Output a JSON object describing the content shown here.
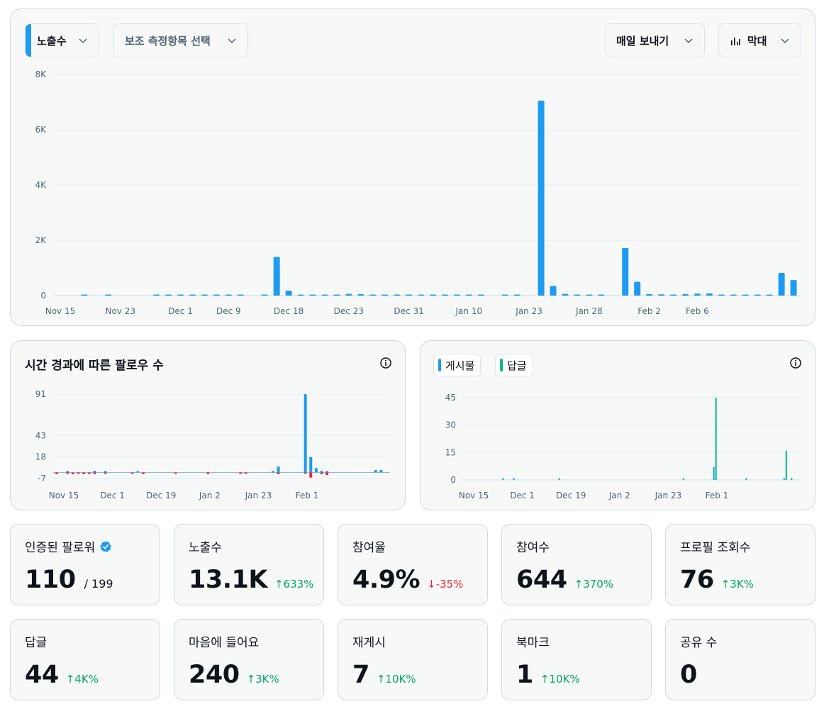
{
  "toolbar": {
    "metric_label": "노출수",
    "secondary_label": "보조 측정항목 선택",
    "export_label": "매일 보내기",
    "chart_type_label": "막대"
  },
  "colors": {
    "blue": "#1d9bf0",
    "green": "#00ba7c",
    "red": "#f4212e",
    "up": "#00a662"
  },
  "main_chart": {
    "chart_data": {
      "type": "bar",
      "y_ticks": [
        "8K",
        "6K",
        "4K",
        "2K",
        "0"
      ],
      "y_tick_values": [
        8000,
        6000,
        4000,
        2000,
        0
      ],
      "ylim": [
        0,
        8000
      ],
      "x_ticks": [
        "Nov 15",
        "Nov 23",
        "Dec 1",
        "Dec 9",
        "Dec 18",
        "Dec 23",
        "Dec 31",
        "Jan 10",
        "Jan 23",
        "Jan 28",
        "Feb 2",
        "Feb 6"
      ],
      "series": [
        {
          "values": [
            0,
            10,
            0,
            8,
            0,
            0,
            0,
            12,
            15,
            10,
            10,
            8,
            10,
            8,
            5,
            0,
            12,
            1400,
            180,
            30,
            20,
            20,
            25,
            60,
            50,
            30,
            25,
            20,
            15,
            18,
            15,
            15,
            15,
            15,
            12,
            0,
            12,
            12,
            0,
            7050,
            350,
            60,
            40,
            35,
            35,
            0,
            1720,
            500,
            50,
            45,
            40,
            50,
            70,
            80,
            40,
            35,
            35,
            35,
            30,
            820,
            560
          ]
        }
      ]
    }
  },
  "followers_chart": {
    "title": "시간 경과에 따른 팔로우 수",
    "chart_data": {
      "type": "bar",
      "y_ticks": [
        "91",
        "43",
        "18",
        "-7"
      ],
      "y_tick_values": [
        91,
        43,
        18,
        -7
      ],
      "ylim": [
        -7,
        91
      ],
      "x_ticks": [
        "Nov 15",
        "Dec 1",
        "Dec 19",
        "Jan 2",
        "Jan 23",
        "Feb 1"
      ],
      "series": [
        {
          "name": "gain",
          "values": [
            0,
            0,
            1,
            0,
            0,
            0,
            0,
            2,
            0,
            1,
            0,
            0,
            0,
            0,
            0,
            1,
            0,
            0,
            0,
            0,
            0,
            0,
            0,
            0,
            0,
            0,
            0,
            0,
            0,
            0,
            0,
            0,
            0,
            0,
            0,
            0,
            0,
            0,
            0,
            0,
            1,
            7,
            0,
            0,
            0,
            0,
            91,
            18,
            5,
            2,
            1,
            0,
            0,
            0,
            0,
            0,
            0,
            0,
            0,
            3,
            3
          ]
        },
        {
          "name": "loss",
          "values": [
            -2,
            0,
            -1,
            -2,
            -1,
            -2,
            -1,
            -2,
            0,
            -1,
            0,
            0,
            0,
            0,
            -1,
            0,
            -2,
            0,
            0,
            0,
            0,
            0,
            -1,
            0,
            0,
            0,
            0,
            0,
            -2,
            0,
            0,
            0,
            0,
            0,
            -1,
            -1,
            0,
            0,
            0,
            0,
            0,
            -2,
            0,
            0,
            0,
            0,
            -1,
            -6,
            0,
            -2,
            -3,
            0,
            0,
            0,
            0,
            0,
            0,
            0,
            0,
            0,
            0
          ]
        }
      ]
    }
  },
  "posts_chart": {
    "legend": [
      {
        "label": "게시물",
        "color": "#1d9bf0"
      },
      {
        "label": "답글",
        "color": "#00ba7c"
      }
    ],
    "chart_data": {
      "type": "bar",
      "y_ticks": [
        "45",
        "30",
        "15",
        "0"
      ],
      "y_tick_values": [
        45,
        30,
        15,
        0
      ],
      "ylim": [
        0,
        45
      ],
      "x_ticks": [
        "Nov 15",
        "Dec 1",
        "Dec 19",
        "Jan 2",
        "Jan 23",
        "Feb 1"
      ],
      "series": [
        {
          "name": "게시물",
          "values": [
            0,
            0,
            0,
            0,
            0,
            0,
            0,
            1,
            0,
            1,
            0,
            0,
            0,
            0,
            0,
            0,
            0,
            0,
            0,
            0,
            0,
            0,
            0,
            0,
            0,
            0,
            0,
            0,
            0,
            0,
            0,
            0,
            0,
            0,
            0,
            0,
            0,
            0,
            0,
            0,
            0,
            0,
            0,
            0,
            0,
            0,
            7,
            0,
            0,
            0,
            0,
            0,
            1,
            0,
            0,
            0,
            0,
            0,
            0,
            1,
            0
          ]
        },
        {
          "name": "답글",
          "values": [
            0,
            0,
            0,
            0,
            0,
            0,
            0,
            0,
            0,
            0,
            0,
            0,
            0,
            0,
            0,
            0,
            0,
            1,
            0,
            0,
            0,
            0,
            0,
            0,
            0,
            0,
            0,
            0,
            0,
            0,
            0,
            0,
            0,
            0,
            0,
            0,
            0,
            0,
            0,
            0,
            1,
            0,
            0,
            0,
            0,
            0,
            45,
            0,
            0,
            0,
            0,
            0,
            0,
            0,
            0,
            0,
            0,
            0,
            0,
            16,
            1
          ]
        }
      ]
    }
  },
  "stats": [
    {
      "label": "인증된 팔로워",
      "value": "110",
      "suffix": "/ 199",
      "change": "",
      "dir": "",
      "verified": true
    },
    {
      "label": "노출수",
      "value": "13.1K",
      "suffix": "",
      "change": "633%",
      "dir": "up"
    },
    {
      "label": "참여율",
      "value": "4.9%",
      "suffix": "",
      "change": "-35%",
      "dir": "down"
    },
    {
      "label": "참여수",
      "value": "644",
      "suffix": "",
      "change": "370%",
      "dir": "up"
    },
    {
      "label": "프로필 조회수",
      "value": "76",
      "suffix": "",
      "change": "3K%",
      "dir": "up"
    },
    {
      "label": "답글",
      "value": "44",
      "suffix": "",
      "change": "4K%",
      "dir": "up"
    },
    {
      "label": "마음에 들어요",
      "value": "240",
      "suffix": "",
      "change": "3K%",
      "dir": "up"
    },
    {
      "label": "재게시",
      "value": "7",
      "suffix": "",
      "change": "10K%",
      "dir": "up"
    },
    {
      "label": "북마크",
      "value": "1",
      "suffix": "",
      "change": "10K%",
      "dir": "up"
    },
    {
      "label": "공유 수",
      "value": "0",
      "suffix": "",
      "change": "",
      "dir": ""
    }
  ]
}
